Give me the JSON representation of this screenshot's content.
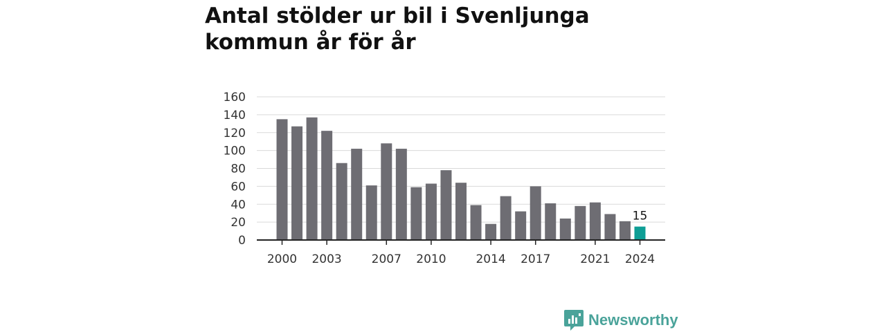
{
  "chart_data": {
    "type": "bar",
    "title": "Antal stölder ur bil i Svenljunga kommun år för år",
    "xlabel": "",
    "ylabel": "",
    "categories": [
      2000,
      2001,
      2002,
      2003,
      2004,
      2005,
      2006,
      2007,
      2008,
      2009,
      2010,
      2011,
      2012,
      2013,
      2014,
      2015,
      2016,
      2017,
      2018,
      2019,
      2020,
      2021,
      2022,
      2023,
      2024
    ],
    "values": [
      135,
      127,
      137,
      122,
      86,
      102,
      61,
      108,
      102,
      59,
      63,
      78,
      64,
      39,
      18,
      49,
      32,
      60,
      41,
      24,
      38,
      42,
      29,
      21,
      15
    ],
    "x_tick_labels": [
      "2000",
      "2003",
      "2007",
      "2010",
      "2014",
      "2017",
      "2021",
      "2024"
    ],
    "y_ticks": [
      0,
      20,
      40,
      60,
      80,
      100,
      120,
      140,
      160
    ],
    "ylim": [
      0,
      160
    ],
    "grid": true,
    "highlight": {
      "category": 2024,
      "label": "15",
      "color": "#0e9e95"
    },
    "bar_color": "#6e6d73"
  },
  "brand": {
    "name": "Newsworthy",
    "icon": "bar-chart-speech-icon",
    "color": "#4aa39a"
  }
}
